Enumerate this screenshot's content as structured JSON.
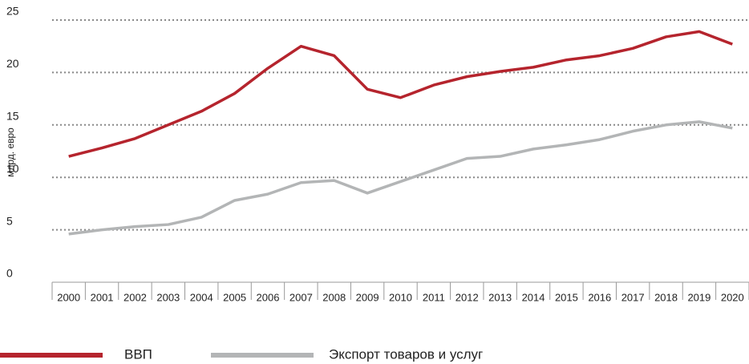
{
  "chart_data": {
    "type": "line",
    "y_label": "млрд. евро",
    "categories": [
      "2000",
      "2001",
      "2002",
      "2003",
      "2004",
      "2005",
      "2006",
      "2007",
      "2008",
      "2009",
      "2010",
      "2011",
      "2012",
      "2013",
      "2014",
      "2015",
      "2016",
      "2017",
      "2018",
      "2019",
      "2020"
    ],
    "series": [
      {
        "name": "ВВП",
        "color": "#b5242d",
        "values": [
          12.0,
          12.8,
          13.7,
          15.0,
          16.3,
          18.0,
          20.4,
          22.5,
          21.6,
          18.4,
          17.6,
          18.8,
          19.6,
          20.1,
          20.5,
          21.2,
          21.6,
          22.3,
          23.4,
          23.9,
          22.7
        ]
      },
      {
        "name": "Экспорт товаров и услуг",
        "color": "#b3b5b6",
        "values": [
          4.6,
          5.0,
          5.3,
          5.5,
          6.2,
          7.8,
          8.4,
          9.5,
          9.7,
          8.5,
          9.6,
          10.7,
          11.8,
          12.0,
          12.7,
          13.1,
          13.6,
          14.4,
          15.0,
          15.3,
          14.7
        ]
      }
    ],
    "ylim": [
      0,
      25
    ],
    "yticks": [
      0,
      5,
      10,
      15,
      20,
      25
    ],
    "grid": true
  }
}
